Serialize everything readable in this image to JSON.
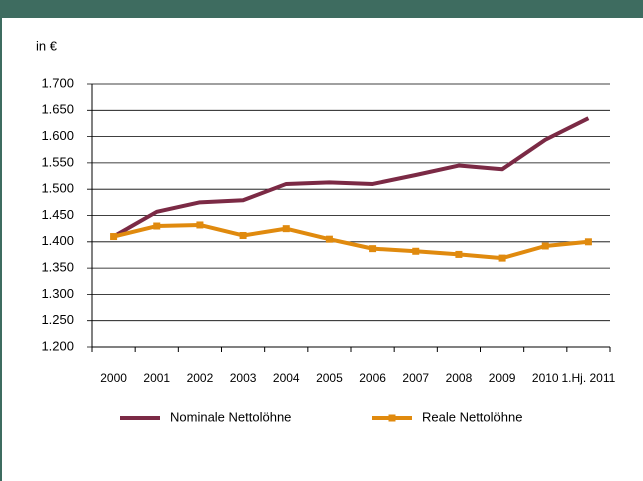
{
  "chart_data": {
    "type": "line",
    "y_label": "in €",
    "categories": [
      "2000",
      "2001",
      "2002",
      "2003",
      "2004",
      "2005",
      "2006",
      "2007",
      "2008",
      "2009",
      "2010",
      "1.Hj. 2011"
    ],
    "series": [
      {
        "name": "Nominale Nettolöhne",
        "color": "#7b2a45",
        "marker": false,
        "values": [
          1410,
          1457,
          1475,
          1479,
          1510,
          1513,
          1510,
          1527,
          1545,
          1538,
          1594,
          1635
        ]
      },
      {
        "name": "Reale Nettolöhne",
        "color": "#e08a0e",
        "marker": true,
        "values": [
          1410,
          1430,
          1432,
          1412,
          1425,
          1405,
          1387,
          1382,
          1376,
          1369,
          1392,
          1400
        ]
      }
    ],
    "ylim": [
      1200,
      1700
    ],
    "yticks": [
      {
        "value": 1200,
        "label": "1.200"
      },
      {
        "value": 1250,
        "label": "1.250"
      },
      {
        "value": 1300,
        "label": "1.300"
      },
      {
        "value": 1350,
        "label": "1.350"
      },
      {
        "value": 1400,
        "label": "1.400"
      },
      {
        "value": 1450,
        "label": "1.450"
      },
      {
        "value": 1500,
        "label": "1.500"
      },
      {
        "value": 1550,
        "label": "1.550"
      },
      {
        "value": 1600,
        "label": "1.600"
      },
      {
        "value": 1650,
        "label": "1.650"
      },
      {
        "value": 1700,
        "label": "1.700"
      }
    ],
    "grid": true,
    "legend": "bottom"
  }
}
